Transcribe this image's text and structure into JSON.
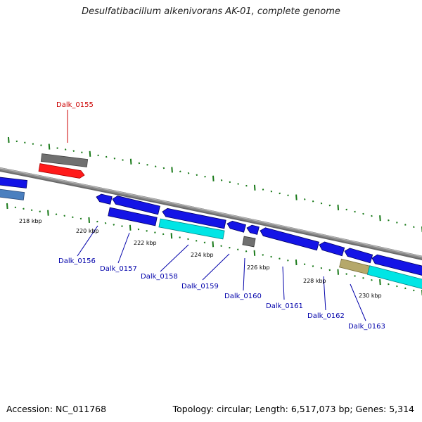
{
  "title": "Desulfatibacillum alkenivorans AK-01, complete genome",
  "footer": {
    "accession": "Accession: NC_011768",
    "summary": "Topology: circular; Length: 6,517,073 bp; Genes: 5,314"
  },
  "colors": {
    "backbone": "#8a8a8a",
    "ticks": "#1a7a1a",
    "blue_gene": "#1414e6",
    "cyan_gene": "#00e5e5",
    "red_gene": "#ff1a1a",
    "gray_gene": "#707070",
    "steel_gene": "#4a7fbf",
    "khaki_gene": "#b5a86a",
    "label_blue": "#0000aa",
    "label_red": "#cc0000"
  },
  "scale_labels": [
    "218 kbp",
    "220 kbp",
    "222 kbp",
    "224 kbp",
    "226 kbp",
    "228 kbp",
    "230 kbp"
  ],
  "genes": [
    {
      "name": "Dalk_0155",
      "color": "red_gene"
    },
    {
      "name": "Dalk_0156",
      "color": "blue_gene"
    },
    {
      "name": "Dalk_0157",
      "color": "blue_gene"
    },
    {
      "name": "Dalk_0158",
      "color": "blue_gene"
    },
    {
      "name": "Dalk_0159",
      "color": "blue_gene"
    },
    {
      "name": "Dalk_0160",
      "color": "gray_gene"
    },
    {
      "name": "Dalk_0161",
      "color": "blue_gene"
    },
    {
      "name": "Dalk_0162",
      "color": "blue_gene"
    },
    {
      "name": "Dalk_0163",
      "color": "blue_gene"
    }
  ]
}
